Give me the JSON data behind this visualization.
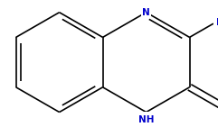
{
  "background_color": "#ffffff",
  "bond_color": "#000000",
  "N_color": "#0000cc",
  "O_color": "#cc6600",
  "figsize": [
    2.41,
    1.41
  ],
  "dpi": 100,
  "font_size": 7.5
}
